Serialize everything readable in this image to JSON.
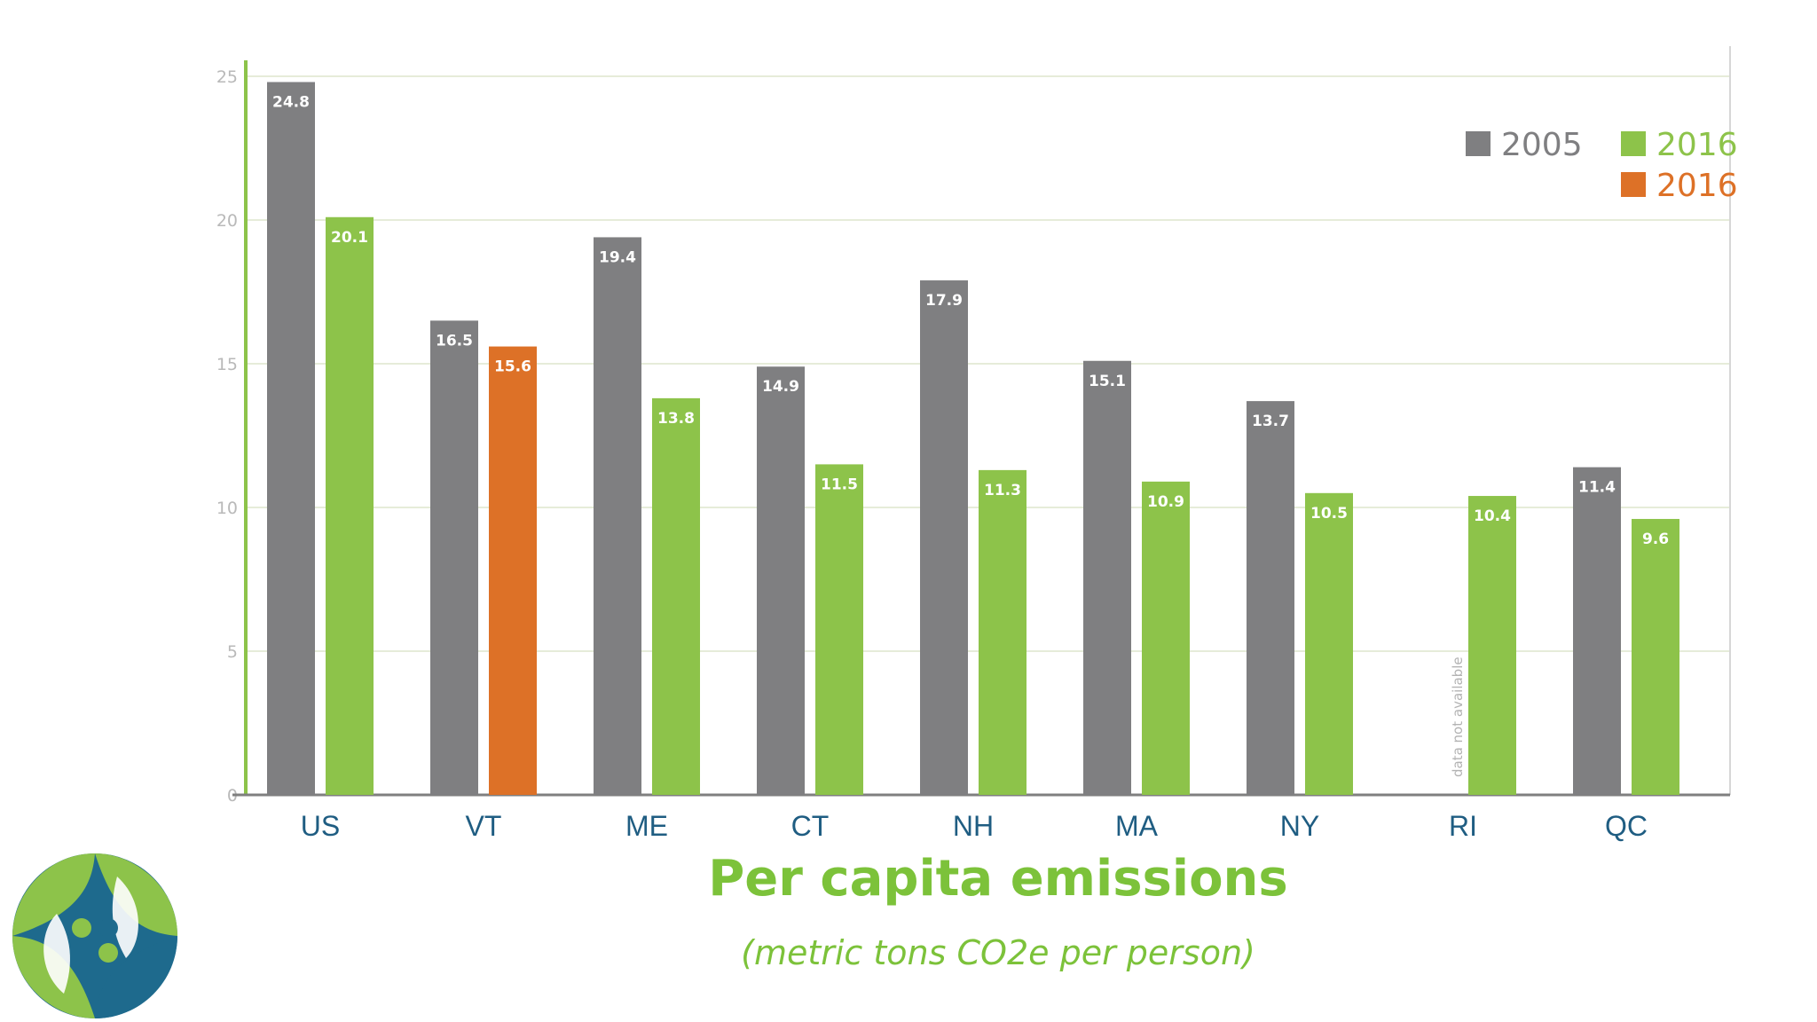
{
  "chart_data": {
    "type": "bar",
    "title": "Per capita emissions",
    "subtitle": "(metric tons CO2e per person)",
    "categories": [
      "US",
      "VT",
      "ME",
      "CT",
      "NH",
      "MA",
      "NY",
      "RI",
      "QC"
    ],
    "series": [
      {
        "name": "2005",
        "color": "#7f7f81",
        "values": [
          24.8,
          16.5,
          19.4,
          14.9,
          17.9,
          15.1,
          13.7,
          null,
          11.4
        ]
      },
      {
        "name": "2016",
        "color": "#8dc34a",
        "values": [
          20.1,
          15.6,
          13.8,
          11.5,
          11.3,
          10.9,
          10.5,
          10.4,
          9.6
        ]
      }
    ],
    "highlight": {
      "series": "2016",
      "category": "VT",
      "color": "#dd7127"
    },
    "legend": [
      {
        "label": "2005",
        "color": "#7f7f81"
      },
      {
        "label": "2016",
        "color": "#8dc34a"
      },
      {
        "label": "2016",
        "color": "#dd7127"
      }
    ],
    "legend_position": "top-right",
    "ylim": [
      0,
      25
    ],
    "yticks": [
      0,
      5,
      10,
      15,
      20,
      25
    ],
    "grid": true,
    "missing_note": "data not available"
  }
}
